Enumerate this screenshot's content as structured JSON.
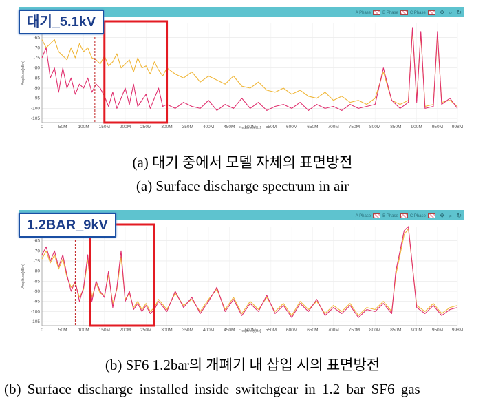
{
  "panels": [
    {
      "tag": "대기_5.1kV",
      "legend": [
        "A Phase",
        "B Phase",
        "C Phase"
      ],
      "x_axis_label": "Frequency[Hz]",
      "y_axis_label": "Amplitude[dBm]",
      "caption_kr": "(a) 대기 중에서 모델 자체의 표면방전",
      "caption_en": "(a) Surface discharge spectrum in air"
    },
    {
      "tag": "1.2BAR_9kV",
      "legend": [
        "A Phase",
        "B Phase",
        "C Phase"
      ],
      "x_axis_label": "Frequency[Hz]",
      "y_axis_label": "Amplitude[dBm]",
      "caption_kr": "(b) SF6 1.2bar의 개폐기 내 삽입 시의 표면방전",
      "caption_en": "(b) Surface discharge installed inside switchgear in 1.2 bar SF6 gas"
    }
  ],
  "colors": {
    "header_bar": "#5ec3cf",
    "series_pink": "#e0306f",
    "series_yellow": "#f0b73a",
    "highlight_box": "#e31b23",
    "marker_line": "#c02020",
    "tag_border": "#1a4fa3"
  },
  "chart_data": [
    {
      "type": "line",
      "x_tick_labels": [
        "0",
        "50M",
        "100M",
        "150M",
        "200M",
        "250M",
        "300M",
        "350M",
        "400M",
        "450M",
        "500M",
        "550M",
        "600M",
        "650M",
        "700M",
        "750M",
        "800M",
        "850M",
        "900M",
        "950M",
        "998M"
      ],
      "y_tick_labels": [
        "-65",
        "-70",
        "-75",
        "-80",
        "-85",
        "-90",
        "-95",
        "-100",
        "-105"
      ],
      "xlim": [
        0,
        998
      ],
      "ylim": [
        -107,
        -58
      ],
      "x_unit": "MHz",
      "highlight_range": [
        150,
        300
      ],
      "marker_x": 127,
      "series": [
        {
          "color": "pink",
          "x": [
            0,
            10,
            20,
            30,
            40,
            50,
            60,
            70,
            80,
            90,
            100,
            110,
            120,
            130,
            140,
            150,
            160,
            170,
            180,
            190,
            200,
            210,
            220,
            230,
            240,
            250,
            260,
            270,
            280,
            290,
            300,
            320,
            340,
            360,
            380,
            400,
            420,
            440,
            460,
            480,
            500,
            520,
            540,
            560,
            580,
            600,
            620,
            640,
            660,
            680,
            700,
            720,
            740,
            760,
            780,
            800,
            820,
            840,
            860,
            880,
            890,
            900,
            910,
            920,
            940,
            950,
            960,
            980,
            998
          ],
          "y": [
            -75,
            -70,
            -85,
            -80,
            -92,
            -80,
            -90,
            -85,
            -93,
            -88,
            -90,
            -85,
            -92,
            -88,
            -90,
            -94,
            -99,
            -92,
            -100,
            -95,
            -90,
            -98,
            -88,
            -99,
            -96,
            -93,
            -100,
            -95,
            -90,
            -99,
            -98,
            -100,
            -97,
            -99,
            -100,
            -96,
            -101,
            -98,
            -100,
            -95,
            -100,
            -97,
            -101,
            -99,
            -98,
            -100,
            -97,
            -101,
            -98,
            -100,
            -99,
            -101,
            -98,
            -100,
            -99,
            -98,
            -80,
            -96,
            -100,
            -97,
            -60,
            -97,
            -62,
            -100,
            -99,
            -62,
            -98,
            -95,
            -100
          ]
        },
        {
          "color": "yellow",
          "x": [
            0,
            10,
            20,
            30,
            40,
            50,
            60,
            70,
            80,
            90,
            100,
            110,
            120,
            130,
            140,
            150,
            160,
            170,
            180,
            190,
            200,
            210,
            220,
            230,
            240,
            250,
            260,
            270,
            280,
            290,
            300,
            320,
            340,
            360,
            380,
            400,
            420,
            440,
            460,
            480,
            500,
            520,
            540,
            560,
            580,
            600,
            620,
            640,
            660,
            680,
            700,
            720,
            740,
            760,
            780,
            800,
            820,
            840,
            860,
            880,
            890,
            900,
            910,
            920,
            940,
            950,
            960,
            980,
            998
          ],
          "y": [
            -66,
            -70,
            -68,
            -66,
            -72,
            -74,
            -76,
            -70,
            -75,
            -68,
            -72,
            -70,
            -75,
            -76,
            -78,
            -74,
            -79,
            -77,
            -73,
            -80,
            -78,
            -76,
            -82,
            -75,
            -80,
            -79,
            -83,
            -77,
            -81,
            -84,
            -80,
            -83,
            -85,
            -82,
            -87,
            -84,
            -86,
            -88,
            -84,
            -89,
            -90,
            -87,
            -91,
            -92,
            -90,
            -93,
            -91,
            -94,
            -95,
            -92,
            -96,
            -94,
            -97,
            -96,
            -98,
            -95,
            -82,
            -96,
            -98,
            -96,
            -61,
            -96,
            -63,
            -99,
            -98,
            -64,
            -97,
            -96,
            -99
          ]
        }
      ]
    },
    {
      "type": "line",
      "x_tick_labels": [
        "0",
        "50M",
        "100M",
        "150M",
        "200M",
        "250M",
        "300M",
        "350M",
        "400M",
        "450M",
        "500M",
        "550M",
        "600M",
        "650M",
        "700M",
        "750M",
        "800M",
        "850M",
        "900M",
        "950M",
        "998M"
      ],
      "y_tick_labels": [
        "-65",
        "-70",
        "-75",
        "-80",
        "-85",
        "-90",
        "-95",
        "-100",
        "-105"
      ],
      "xlim": [
        0,
        998
      ],
      "ylim": [
        -107,
        -58
      ],
      "x_unit": "MHz",
      "highlight_range": [
        115,
        270
      ],
      "marker_x": 80,
      "series": [
        {
          "color": "pink",
          "x": [
            0,
            10,
            20,
            30,
            40,
            50,
            60,
            70,
            80,
            90,
            100,
            110,
            120,
            130,
            140,
            150,
            160,
            170,
            180,
            190,
            200,
            210,
            220,
            230,
            240,
            250,
            260,
            270,
            280,
            300,
            320,
            340,
            360,
            380,
            400,
            420,
            440,
            460,
            480,
            500,
            520,
            540,
            560,
            580,
            600,
            620,
            640,
            660,
            680,
            700,
            720,
            740,
            760,
            780,
            800,
            820,
            840,
            850,
            860,
            870,
            880,
            900,
            920,
            940,
            960,
            980,
            998
          ],
          "y": [
            -72,
            -68,
            -75,
            -70,
            -78,
            -72,
            -82,
            -90,
            -85,
            -95,
            -88,
            -72,
            -95,
            -85,
            -90,
            -93,
            -80,
            -98,
            -88,
            -70,
            -95,
            -90,
            -99,
            -96,
            -100,
            -97,
            -101,
            -99,
            -95,
            -100,
            -90,
            -98,
            -93,
            -101,
            -95,
            -88,
            -100,
            -94,
            -102,
            -96,
            -100,
            -92,
            -101,
            -97,
            -103,
            -96,
            -100,
            -94,
            -102,
            -98,
            -101,
            -97,
            -103,
            -99,
            -100,
            -96,
            -101,
            -80,
            -70,
            -60,
            -58,
            -98,
            -101,
            -97,
            -102,
            -99,
            -98
          ]
        },
        {
          "color": "yellow",
          "x": [
            0,
            10,
            20,
            30,
            40,
            50,
            60,
            70,
            80,
            90,
            100,
            110,
            120,
            130,
            140,
            150,
            160,
            170,
            180,
            190,
            200,
            210,
            220,
            230,
            240,
            250,
            260,
            270,
            280,
            300,
            320,
            340,
            360,
            380,
            400,
            420,
            440,
            460,
            480,
            500,
            520,
            540,
            560,
            580,
            600,
            620,
            640,
            660,
            680,
            700,
            720,
            740,
            760,
            780,
            800,
            820,
            840,
            850,
            860,
            870,
            880,
            900,
            920,
            940,
            960,
            980,
            998
          ],
          "y": [
            -74,
            -70,
            -76,
            -72,
            -79,
            -74,
            -83,
            -88,
            -86,
            -93,
            -89,
            -74,
            -93,
            -86,
            -91,
            -92,
            -82,
            -96,
            -89,
            -73,
            -94,
            -91,
            -98,
            -95,
            -99,
            -96,
            -100,
            -98,
            -94,
            -99,
            -91,
            -97,
            -94,
            -100,
            -94,
            -89,
            -99,
            -93,
            -101,
            -95,
            -99,
            -93,
            -100,
            -96,
            -102,
            -95,
            -99,
            -95,
            -101,
            -97,
            -100,
            -96,
            -102,
            -98,
            -99,
            -95,
            -100,
            -82,
            -72,
            -62,
            -59,
            -97,
            -100,
            -96,
            -101,
            -98,
            -97
          ]
        }
      ]
    }
  ]
}
